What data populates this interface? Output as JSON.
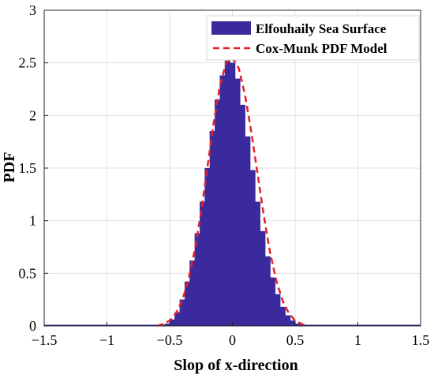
{
  "chart_data": {
    "type": "bar",
    "title": "",
    "xlabel": "Slop of x-direction",
    "ylabel": "PDF",
    "xlim": [
      -1.5,
      1.5
    ],
    "ylim": [
      0,
      3
    ],
    "x_ticks": [
      -1.5,
      -1,
      -0.5,
      0,
      0.5,
      1,
      1.5
    ],
    "x_tick_labels": [
      "−1.5",
      "−1",
      "−0.5",
      "0",
      "0.5",
      "1",
      "1.5"
    ],
    "y_ticks": [
      0,
      0.5,
      1,
      1.5,
      2,
      2.5,
      3
    ],
    "y_tick_labels": [
      "0",
      "0.5",
      "1",
      "1.5",
      "2",
      "2.5",
      "3"
    ],
    "grid": true,
    "legend_position": "top-right",
    "series": [
      {
        "name": "Elfouhaily Sea Surface",
        "kind": "histogram",
        "color": "#3a2a9e",
        "x": [
          -0.56,
          -0.52,
          -0.48,
          -0.44,
          -0.4,
          -0.36,
          -0.32,
          -0.28,
          -0.24,
          -0.2,
          -0.16,
          -0.12,
          -0.08,
          -0.04,
          0.0,
          0.04,
          0.08,
          0.12,
          0.16,
          0.2,
          0.24,
          0.28,
          0.32,
          0.36,
          0.4,
          0.44,
          0.48,
          0.52,
          0.56
        ],
        "values": [
          0.01,
          0.02,
          0.06,
          0.13,
          0.25,
          0.42,
          0.62,
          0.88,
          1.18,
          1.5,
          1.85,
          2.15,
          2.38,
          2.52,
          2.5,
          2.35,
          2.1,
          1.8,
          1.48,
          1.18,
          0.9,
          0.66,
          0.46,
          0.3,
          0.18,
          0.1,
          0.05,
          0.02,
          0.01
        ]
      },
      {
        "name": "Cox-Munk PDF Model",
        "kind": "line",
        "style": "dashed",
        "color": "#e8202a",
        "x": [
          -0.6,
          -0.55,
          -0.5,
          -0.45,
          -0.4,
          -0.35,
          -0.3,
          -0.25,
          -0.2,
          -0.15,
          -0.1,
          -0.05,
          0.0,
          0.05,
          0.1,
          0.15,
          0.2,
          0.25,
          0.3,
          0.35,
          0.4,
          0.45,
          0.5,
          0.55,
          0.6
        ],
        "values": [
          0.0,
          0.02,
          0.05,
          0.12,
          0.24,
          0.44,
          0.72,
          1.08,
          1.5,
          1.92,
          2.28,
          2.5,
          2.55,
          2.45,
          2.2,
          1.85,
          1.45,
          1.05,
          0.7,
          0.43,
          0.24,
          0.12,
          0.05,
          0.02,
          0.0
        ]
      }
    ]
  }
}
